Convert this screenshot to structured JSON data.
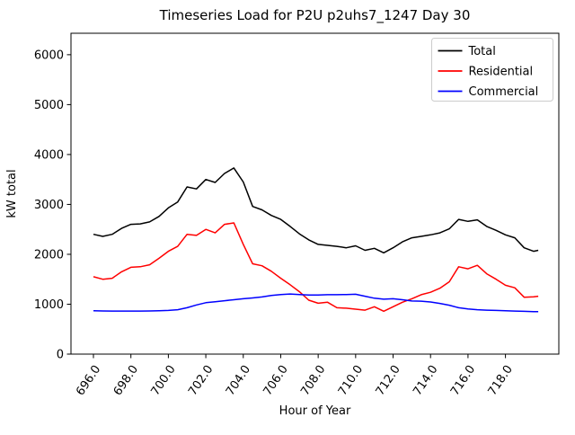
{
  "chart_data": {
    "type": "line",
    "title": "Timeseries Load for P2U p2uhs7_1247  Day 30",
    "xlabel": "Hour of Year",
    "ylabel": "kW total",
    "xlim": [
      694.8,
      720.85
    ],
    "ylim": [
      0,
      6430
    ],
    "grid": false,
    "xticks": [
      696,
      698,
      700,
      702,
      704,
      706,
      708,
      710,
      712,
      714,
      716,
      718
    ],
    "xtick_labels": [
      "696.0",
      "698.0",
      "700.0",
      "702.0",
      "704.0",
      "706.0",
      "708.0",
      "710.0",
      "712.0",
      "714.0",
      "716.0",
      "718.0"
    ],
    "yticks": [
      0,
      1000,
      2000,
      3000,
      4000,
      5000,
      6000
    ],
    "ytick_labels": [
      "0",
      "1000",
      "2000",
      "3000",
      "4000",
      "5000",
      "6000"
    ],
    "legend": {
      "position": "upper right",
      "entries": [
        "Total",
        "Residential",
        "Commercial"
      ]
    },
    "x": [
      696,
      696.5,
      697,
      697.5,
      698,
      698.5,
      699,
      699.5,
      700,
      700.5,
      701,
      701.5,
      702,
      702.5,
      703,
      703.5,
      704,
      704.5,
      705,
      705.5,
      706,
      706.5,
      707,
      707.5,
      708,
      708.5,
      709,
      709.5,
      710,
      710.5,
      711,
      711.5,
      712,
      712.5,
      713,
      713.5,
      714,
      714.5,
      715,
      715.5,
      716,
      716.5,
      717,
      717.5,
      718,
      718.5,
      719,
      719.5,
      719.75
    ],
    "series": [
      {
        "name": "Total",
        "color": "#000000",
        "values": [
          2400,
          2360,
          2400,
          2520,
          2600,
          2610,
          2650,
          2760,
          2930,
          3050,
          3350,
          3310,
          3500,
          3440,
          3620,
          3730,
          3450,
          2960,
          2890,
          2780,
          2700,
          2560,
          2410,
          2290,
          2200,
          2180,
          2160,
          2130,
          2170,
          2080,
          2120,
          2030,
          2130,
          2250,
          2330,
          2360,
          2390,
          2430,
          2510,
          2700,
          2660,
          2690,
          2560,
          2480,
          2390,
          2330,
          2130,
          2060,
          2080
        ]
      },
      {
        "name": "Residential",
        "color": "#ff0000",
        "values": [
          1550,
          1500,
          1520,
          1650,
          1740,
          1750,
          1790,
          1920,
          2060,
          2160,
          2400,
          2380,
          2500,
          2430,
          2600,
          2630,
          2200,
          1810,
          1770,
          1660,
          1520,
          1390,
          1250,
          1080,
          1020,
          1040,
          930,
          920,
          900,
          880,
          950,
          860,
          950,
          1040,
          1110,
          1190,
          1240,
          1320,
          1450,
          1750,
          1710,
          1780,
          1610,
          1500,
          1380,
          1330,
          1140,
          1150,
          1160
        ]
      },
      {
        "name": "Commercial",
        "color": "#0000ff",
        "values": [
          870,
          865,
          863,
          862,
          862,
          863,
          865,
          868,
          875,
          890,
          930,
          985,
          1030,
          1050,
          1070,
          1090,
          1110,
          1125,
          1145,
          1175,
          1195,
          1205,
          1195,
          1185,
          1185,
          1190,
          1190,
          1195,
          1200,
          1160,
          1120,
          1100,
          1110,
          1090,
          1065,
          1060,
          1045,
          1015,
          980,
          930,
          905,
          890,
          880,
          875,
          868,
          862,
          858,
          852,
          850
        ]
      }
    ]
  }
}
